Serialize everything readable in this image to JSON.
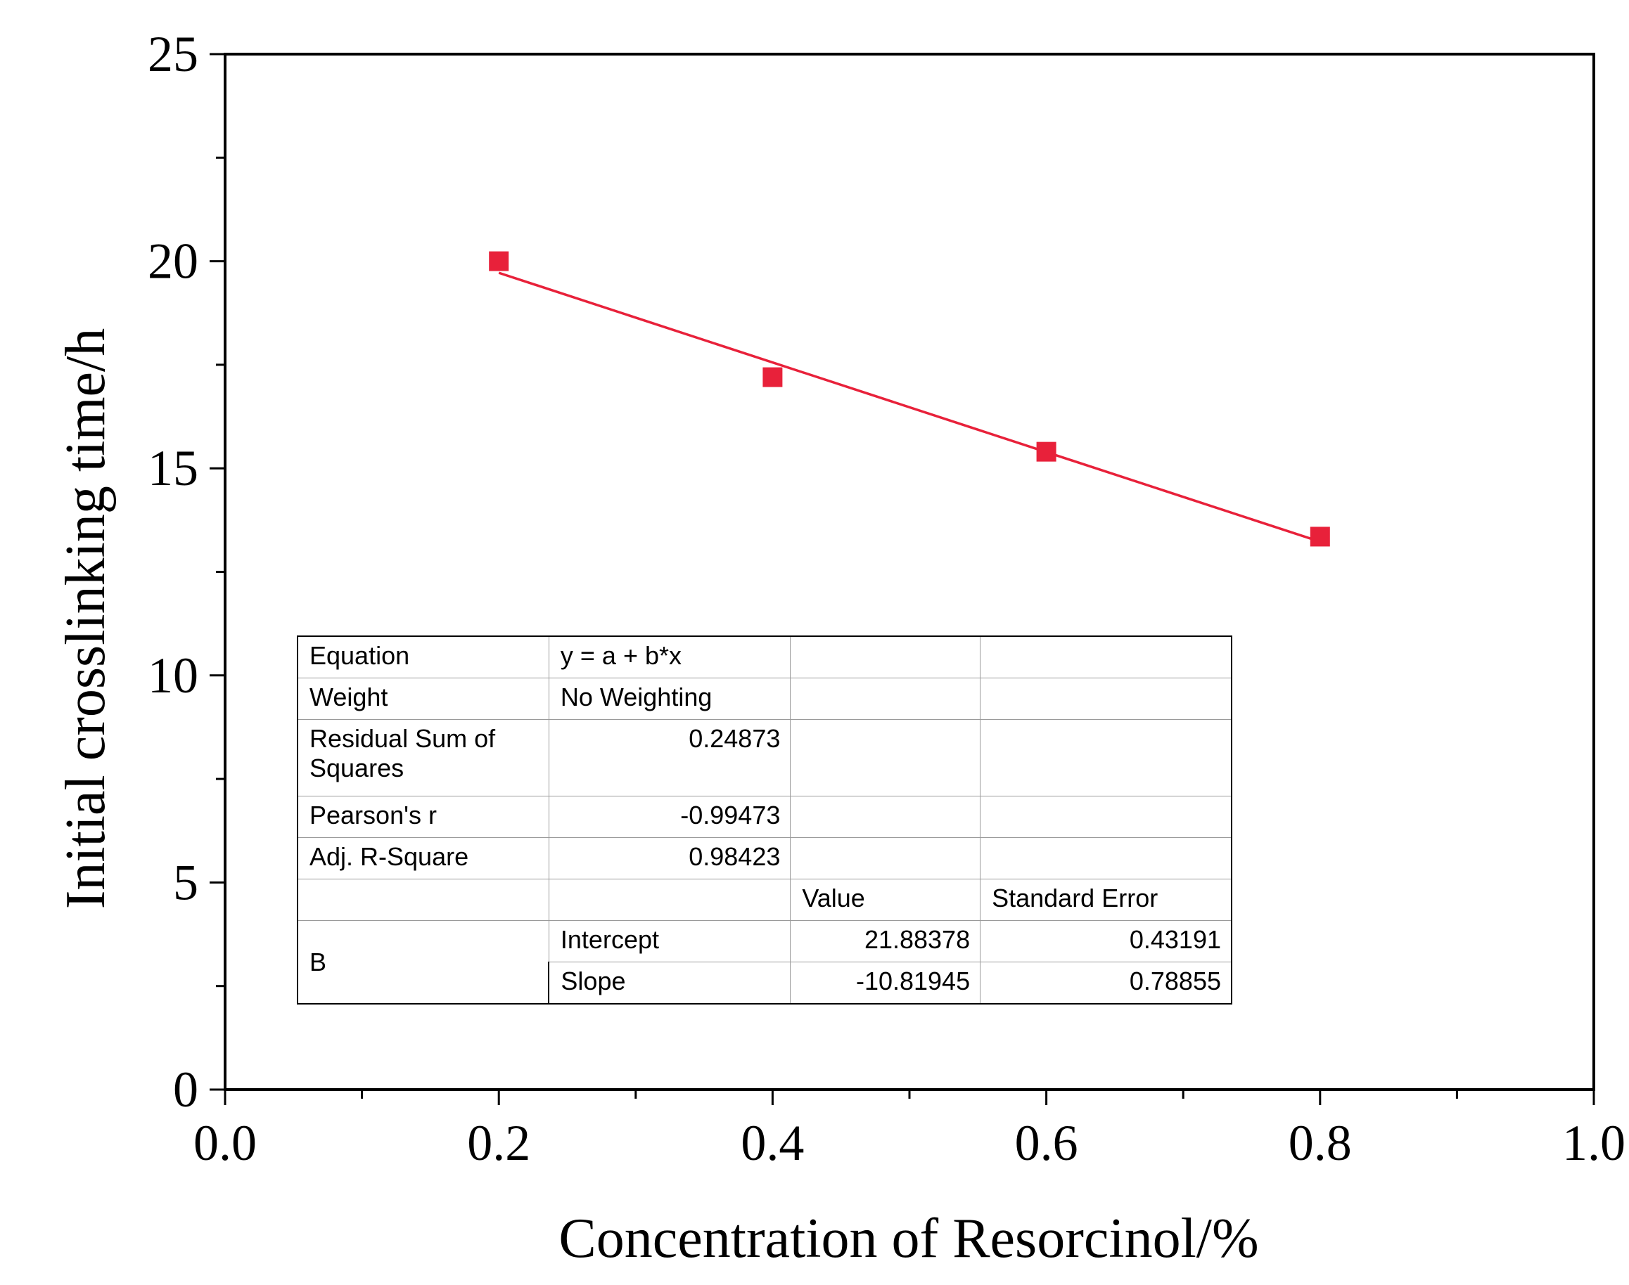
{
  "chart_data": {
    "type": "scatter",
    "title": "",
    "xlabel": "Concentration of Resorcinol/%",
    "ylabel": "Initial crosslinking time/h",
    "xlim": [
      0.0,
      1.0
    ],
    "ylim": [
      0,
      25
    ],
    "x_ticks": [
      "0.0",
      "0.2",
      "0.4",
      "0.6",
      "0.8",
      "1.0"
    ],
    "y_ticks": [
      "0",
      "5",
      "10",
      "15",
      "20",
      "25"
    ],
    "grid": false,
    "series": [
      {
        "name": "B",
        "x": [
          0.2,
          0.4,
          0.6,
          0.8
        ],
        "y": [
          20.0,
          17.2,
          15.4,
          13.35
        ],
        "marker": "square",
        "color": "#e8213a"
      }
    ],
    "fit": {
      "name": "Linear fit",
      "intercept": 21.88378,
      "slope": -10.81945,
      "x_range": [
        0.2,
        0.8
      ],
      "color": "#e8213a"
    }
  },
  "fit_table": {
    "equation_label": "Equation",
    "equation_value": "y = a + b*x",
    "weight_label": "Weight",
    "weight_value": "No Weighting",
    "rss_label": "Residual Sum of Squares",
    "rss_value": "0.24873",
    "pearson_label": "Pearson's r",
    "pearson_value": "-0.99473",
    "adjr_label": "Adj. R-Square",
    "adjr_value": "0.98423",
    "value_header": "Value",
    "se_header": "Standard Error",
    "group_label": "B",
    "intercept_label": "Intercept",
    "intercept_value": "21.88378",
    "intercept_se": "0.43191",
    "slope_label": "Slope",
    "slope_value": "-10.81945",
    "slope_se": "0.78855"
  }
}
